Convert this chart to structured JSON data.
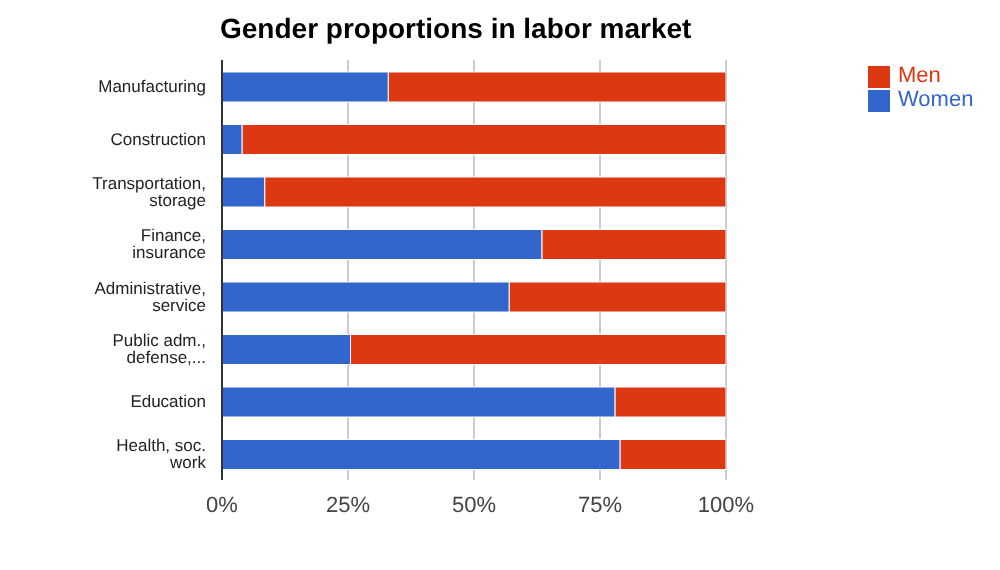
{
  "chart_data": {
    "type": "bar",
    "title": "Gender proportions in labor market",
    "orientation": "horizontal",
    "stacked": true,
    "categories": [
      "Manufacturing",
      "Construction",
      "Transportation, storage",
      "Finance, insurance",
      "Administrative, service",
      "Public adm., defense,...",
      "Education",
      "Health, soc. work"
    ],
    "series": [
      {
        "name": "Women",
        "color": "#3366cc",
        "values": [
          33,
          4,
          8.5,
          63.5,
          57,
          25.5,
          78,
          79
        ]
      },
      {
        "name": "Men",
        "color": "#dc3912",
        "values": [
          67,
          96,
          91.5,
          36.5,
          43,
          74.5,
          22,
          21
        ]
      }
    ],
    "xlim": [
      0,
      100
    ],
    "xticks": [
      {
        "value": 0,
        "label": "0%"
      },
      {
        "value": 25,
        "label": "25%"
      },
      {
        "value": 50,
        "label": "50%"
      },
      {
        "value": 75,
        "label": "75%"
      },
      {
        "value": 100,
        "label": "100%"
      }
    ],
    "grid": "x",
    "legend": "top right"
  }
}
